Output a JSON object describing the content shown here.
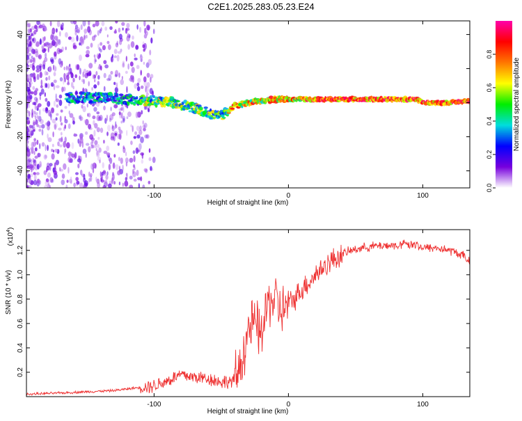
{
  "title": "C2E1.2025.283.05.23.E24",
  "colors": {
    "snr_line": "#ee3030",
    "axis": "#000000",
    "background": "#ffffff"
  },
  "chart_data": [
    {
      "type": "heatmap",
      "name": "spectrogram",
      "xlabel": "Height of straight line (km)",
      "ylabel": "Frequency (Hz)",
      "xlim": [
        -195,
        135
      ],
      "ylim": [
        -50,
        48
      ],
      "x_ticks": [
        -100,
        0,
        100
      ],
      "x_tick_labels": [
        "-100",
        "0",
        "100"
      ],
      "y_ticks": [
        -40,
        -20,
        0,
        20,
        40
      ],
      "y_tick_labels": [
        "-40",
        "-20",
        "0",
        "20",
        "40"
      ],
      "ridge_frequency": {
        "x": [
          -160,
          -140,
          -120,
          -100,
          -85,
          -70,
          -60,
          -50,
          -45,
          -40,
          -30,
          -20,
          -10,
          0,
          20,
          50,
          95,
          100,
          120,
          135
        ],
        "y": [
          3,
          3,
          2,
          1,
          0,
          -3,
          -6,
          -8,
          -5,
          -2,
          0,
          1,
          2,
          2,
          2,
          2,
          2,
          0,
          0,
          1
        ]
      },
      "colorbar": {
        "label": "Normalized spectral amplitude",
        "range": [
          0,
          1
        ],
        "ticks": [
          0.0,
          0.2,
          0.4,
          0.6,
          0.8
        ],
        "tick_labels": [
          "0.0",
          "0.2",
          "0.4",
          "0.6",
          "0.8"
        ],
        "colormap": [
          "#ffffff",
          "#7700dd",
          "#0000ff",
          "#00dddd",
          "#00ee00",
          "#ffff00",
          "#ff7700",
          "#ff0000",
          "#ff00aa"
        ]
      }
    },
    {
      "type": "line",
      "name": "snr",
      "xlabel": "Height of straight line (km)",
      "ylabel": "SNR (10 * v/v)",
      "multiplier_label": "(x10",
      "multiplier_exponent": "4",
      "multiplier_close": ")",
      "xlim": [
        -195,
        135
      ],
      "ylim": [
        0,
        1.37
      ],
      "x_ticks": [
        -100,
        0,
        100
      ],
      "x_tick_labels": [
        "-100",
        "0",
        "100"
      ],
      "y_ticks": [
        0.2,
        0.4,
        0.6,
        0.8,
        1.0,
        1.2
      ],
      "y_tick_labels": [
        "0.2",
        "0.4",
        "0.6",
        "0.8",
        "1.0",
        "1.2"
      ],
      "series": [
        {
          "name": "SNR",
          "x": [
            -195,
            -170,
            -150,
            -130,
            -115,
            -100,
            -90,
            -80,
            -70,
            -60,
            -50,
            -40,
            -35,
            -30,
            -25,
            -20,
            -15,
            -10,
            -5,
            0,
            10,
            20,
            30,
            40,
            50,
            60,
            70,
            80,
            90,
            95,
            100,
            110,
            120,
            130,
            135
          ],
          "y": [
            0.02,
            0.03,
            0.04,
            0.05,
            0.07,
            0.09,
            0.13,
            0.18,
            0.16,
            0.15,
            0.12,
            0.13,
            0.28,
            0.55,
            0.6,
            0.5,
            0.78,
            0.8,
            0.7,
            0.75,
            0.88,
            1.0,
            1.1,
            1.17,
            1.21,
            1.23,
            1.24,
            1.24,
            1.25,
            1.25,
            1.22,
            1.22,
            1.2,
            1.16,
            1.1
          ]
        }
      ]
    }
  ]
}
